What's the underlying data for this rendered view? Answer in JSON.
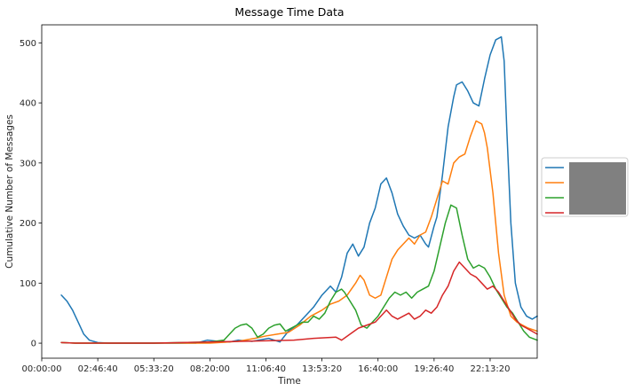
{
  "chart_data": {
    "type": "line",
    "title": "Message Time Data",
    "xlabel": "Time",
    "ylabel": "Cumulative Number of Messages",
    "xlim": [
      0,
      88400
    ],
    "ylim": [
      -25,
      530
    ],
    "x_ticks": [
      {
        "value": 0,
        "label": "00:00:00"
      },
      {
        "value": 10000,
        "label": "02:46:40"
      },
      {
        "value": 20000,
        "label": "05:33:20"
      },
      {
        "value": 30000,
        "label": "08:20:00"
      },
      {
        "value": 40000,
        "label": "11:06:40"
      },
      {
        "value": 50000,
        "label": "13:53:20"
      },
      {
        "value": 60000,
        "label": "16:40:00"
      },
      {
        "value": 70000,
        "label": "19:26:40"
      },
      {
        "value": 80000,
        "label": "22:13:20"
      }
    ],
    "y_ticks": [
      0,
      100,
      200,
      300,
      400,
      500
    ],
    "grid": false,
    "legend": {
      "placement": "center-right outside",
      "labels_redacted": true
    },
    "series": [
      {
        "color": "#1f77b4",
        "x": [
          3500,
          4500,
          5500,
          6500,
          7500,
          8500,
          10000,
          12000,
          20000,
          27500,
          29500,
          31500,
          33500,
          35000,
          37500,
          40500,
          42500,
          44000,
          45500,
          47000,
          48500,
          50000,
          51500,
          52500,
          53500,
          54500,
          55500,
          56500,
          57500,
          58500,
          59500,
          60500,
          61500,
          62500,
          63500,
          64500,
          65500,
          66500,
          67500,
          68500,
          69000,
          70000,
          70500,
          71500,
          72500,
          73500,
          74000,
          75000,
          76000,
          77000,
          78000,
          79000,
          80000,
          81000,
          82000,
          82500,
          83000,
          83700,
          84500,
          85500,
          86500,
          87500,
          88400
        ],
        "y": [
          80,
          70,
          55,
          35,
          15,
          5,
          1,
          0,
          0,
          0,
          5,
          3,
          2,
          5,
          3,
          8,
          2,
          20,
          30,
          45,
          60,
          80,
          95,
          85,
          110,
          150,
          165,
          145,
          160,
          200,
          225,
          265,
          275,
          250,
          215,
          195,
          180,
          175,
          180,
          165,
          160,
          195,
          210,
          280,
          360,
          410,
          430,
          435,
          420,
          400,
          395,
          440,
          480,
          505,
          510,
          470,
          350,
          200,
          100,
          60,
          45,
          40,
          45
        ]
      },
      {
        "color": "#ff7f0e",
        "x": [
          3500,
          6000,
          12000,
          20000,
          30000,
          35000,
          38000,
          40000,
          42000,
          44000,
          46000,
          48000,
          50000,
          51500,
          53000,
          54500,
          56000,
          56800,
          57500,
          58500,
          59500,
          60500,
          61500,
          62500,
          63500,
          64500,
          65500,
          66500,
          67500,
          68500,
          69500,
          70500,
          71500,
          72500,
          73500,
          74500,
          75500,
          76500,
          77500,
          78500,
          79000,
          79500,
          80500,
          81500,
          82500,
          83700,
          84800,
          85800,
          86800,
          88400
        ],
        "y": [
          1,
          0,
          0,
          0,
          0,
          3,
          8,
          12,
          15,
          18,
          30,
          45,
          55,
          65,
          70,
          80,
          100,
          113,
          105,
          80,
          75,
          80,
          110,
          140,
          155,
          165,
          175,
          165,
          180,
          185,
          210,
          240,
          270,
          265,
          300,
          310,
          315,
          345,
          370,
          365,
          350,
          325,
          250,
          150,
          80,
          45,
          35,
          30,
          25,
          20
        ]
      },
      {
        "color": "#2ca02c",
        "x": [
          3500,
          6000,
          12000,
          20000,
          30000,
          32500,
          33500,
          34500,
          35500,
          36500,
          37500,
          38500,
          39500,
          40500,
          41500,
          42500,
          43500,
          44500,
          45500,
          46500,
          47500,
          48500,
          49500,
          50500,
          51500,
          52500,
          53500,
          54000,
          55000,
          56000,
          57000,
          58000,
          59000,
          60000,
          61000,
          62000,
          63000,
          64000,
          65000,
          66000,
          67000,
          68000,
          69000,
          70000,
          71000,
          72000,
          73000,
          74000,
          75000,
          76000,
          77000,
          78000,
          79000,
          80000,
          81000,
          82000,
          83000,
          84000,
          85000,
          86000,
          87000,
          88400
        ],
        "y": [
          1,
          0,
          0,
          0,
          2,
          5,
          15,
          25,
          30,
          32,
          25,
          10,
          15,
          25,
          30,
          32,
          20,
          25,
          30,
          35,
          35,
          45,
          40,
          50,
          70,
          85,
          90,
          85,
          70,
          55,
          30,
          25,
          35,
          45,
          60,
          75,
          85,
          80,
          85,
          75,
          85,
          90,
          95,
          120,
          160,
          200,
          230,
          225,
          180,
          140,
          125,
          130,
          125,
          110,
          90,
          75,
          60,
          50,
          35,
          20,
          10,
          5
        ]
      },
      {
        "color": "#d62728",
        "x": [
          3500,
          6000,
          12000,
          20000,
          30000,
          40000,
          45000,
          48500,
          52500,
          53500,
          55000,
          56500,
          58000,
          59500,
          60500,
          61500,
          62500,
          63500,
          64500,
          65500,
          66500,
          67500,
          68500,
          69500,
          70500,
          71500,
          72500,
          73500,
          74500,
          75500,
          76500,
          77500,
          78500,
          79500,
          80500,
          81500,
          82500,
          83500,
          84500,
          85500,
          86500,
          88400
        ],
        "y": [
          1,
          0,
          0,
          0,
          2,
          4,
          5,
          8,
          10,
          5,
          15,
          25,
          30,
          35,
          45,
          55,
          45,
          40,
          45,
          50,
          40,
          45,
          55,
          50,
          60,
          80,
          95,
          120,
          135,
          125,
          115,
          110,
          100,
          90,
          95,
          85,
          70,
          55,
          40,
          30,
          25,
          15
        ]
      }
    ]
  }
}
